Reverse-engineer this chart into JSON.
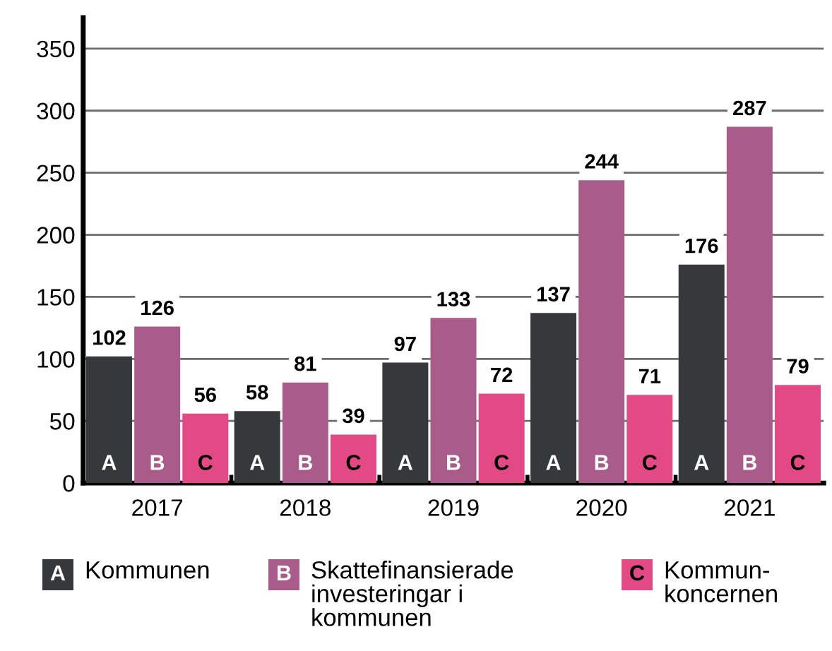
{
  "chart_data": {
    "type": "bar",
    "categories": [
      "2017",
      "2018",
      "2019",
      "2020",
      "2021"
    ],
    "series": [
      {
        "name": "Kommunen",
        "color": "#36393c",
        "values": [
          102,
          58,
          97,
          137,
          176
        ]
      },
      {
        "name": "Skattefinansierade\ninvesteringar i\nkommunen",
        "color": "#a95c8a",
        "values": [
          126,
          81,
          133,
          244,
          287
        ]
      },
      {
        "name": "Kommun-\nkoncernen",
        "color": "#e34a85",
        "values": [
          56,
          39,
          72,
          71,
          79
        ]
      }
    ],
    "annotations": [
      "A",
      "B",
      "C"
    ],
    "ylim": [
      0,
      375
    ],
    "yticks": [
      0,
      50,
      100,
      150,
      200,
      250,
      300,
      350
    ],
    "grid": "y",
    "data_labels": true,
    "legend": "bottom"
  }
}
